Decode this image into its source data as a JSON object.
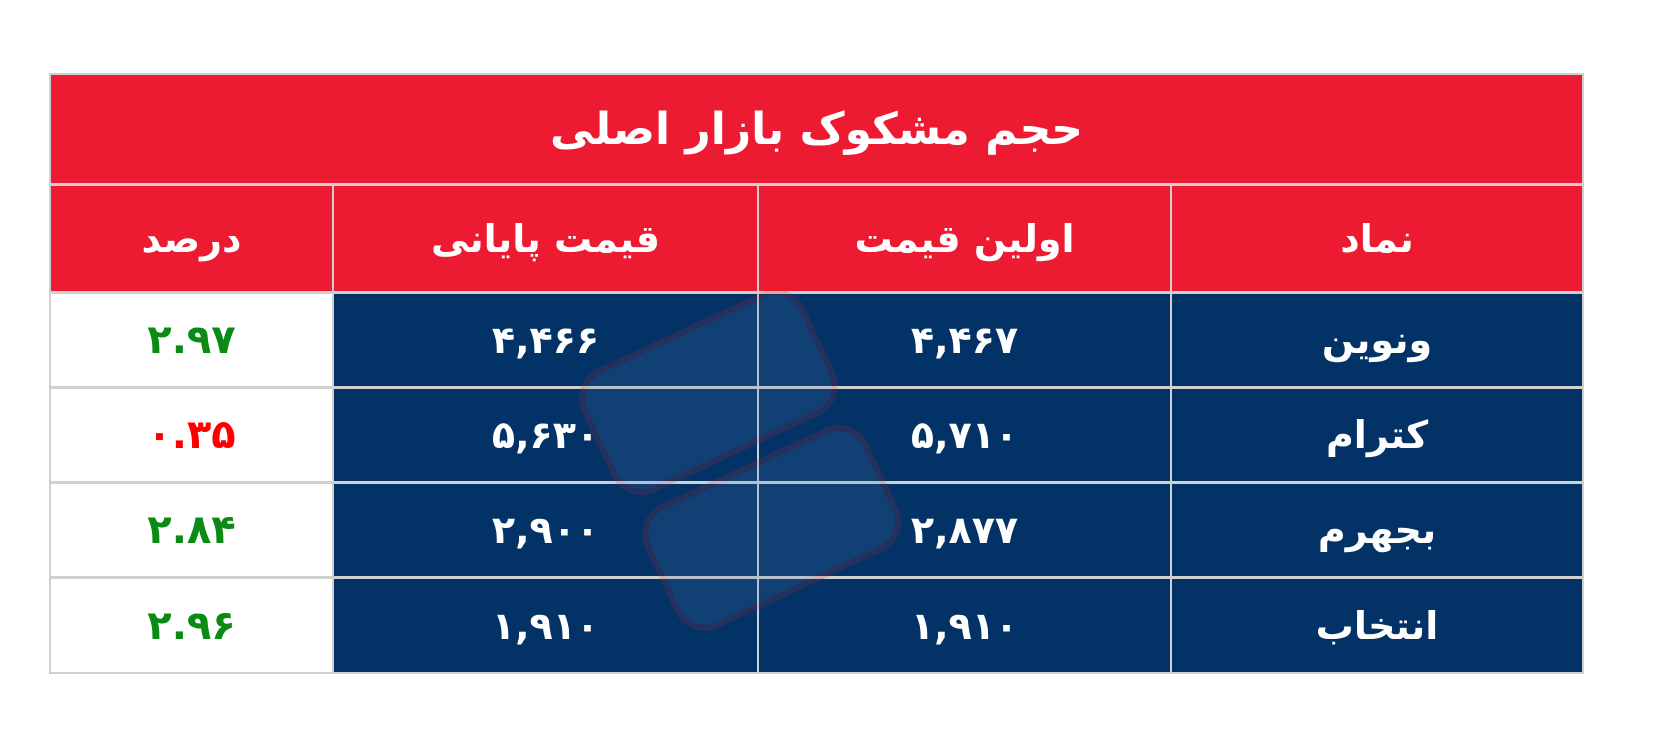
{
  "title": "حجم مشکوک بازار اصلی",
  "columns": [
    "نماد",
    "اولین قیمت",
    "قیمت پایانی",
    "درصد"
  ],
  "rows": [
    {
      "symbol": "ونوین",
      "first_price": "۴,۴۶۷",
      "last_price": "۴,۴۶۶",
      "percent": "۲.۹۷",
      "percent_color": "#0b8a14"
    },
    {
      "symbol": "کترام",
      "first_price": "۵,۷۱۰",
      "last_price": "۵,۶۳۰",
      "percent": "۰.۳۵",
      "percent_color": "#ff0000"
    },
    {
      "symbol": "بجهرم",
      "first_price": "۲,۸۷۷",
      "last_price": "۲,۹۰۰",
      "percent": "۲.۸۴",
      "percent_color": "#0b8a14"
    },
    {
      "symbol": "انتخاب",
      "first_price": "۱,۹۱۰",
      "last_price": "۱,۹۱۰",
      "percent": "۲.۹۶",
      "percent_color": "#0b8a14"
    }
  ],
  "colors": {
    "header": "#ed1b31",
    "body": "#033366",
    "positive": "#0b8a14",
    "negative": "#ff0000"
  }
}
